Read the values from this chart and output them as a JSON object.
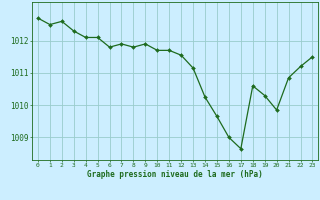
{
  "x": [
    0,
    1,
    2,
    3,
    4,
    5,
    6,
    7,
    8,
    9,
    10,
    11,
    12,
    13,
    14,
    15,
    16,
    17,
    18,
    19,
    20,
    21,
    22,
    23
  ],
  "y": [
    1012.7,
    1012.5,
    1012.6,
    1012.3,
    1012.1,
    1012.1,
    1011.8,
    1011.9,
    1011.8,
    1011.9,
    1011.7,
    1011.7,
    1011.55,
    1011.15,
    1010.25,
    1009.65,
    1009.0,
    1008.65,
    1010.6,
    1010.3,
    1009.85,
    1010.85,
    1011.2,
    1011.5
  ],
  "line_color": "#1e6b1e",
  "marker": "D",
  "marker_size": 2,
  "line_width": 0.9,
  "bg_color": "#cceeff",
  "grid_color": "#99cccc",
  "xlabel": "Graphe pression niveau de la mer (hPa)",
  "xlabel_color": "#1e6b1e",
  "tick_color": "#1e6b1e",
  "axis_color": "#1e6b1e",
  "ylim": [
    1008.3,
    1013.2
  ],
  "yticks": [
    1009,
    1010,
    1011,
    1012
  ],
  "xticks": [
    0,
    1,
    2,
    3,
    4,
    5,
    6,
    7,
    8,
    9,
    10,
    11,
    12,
    13,
    14,
    15,
    16,
    17,
    18,
    19,
    20,
    21,
    22,
    23
  ]
}
